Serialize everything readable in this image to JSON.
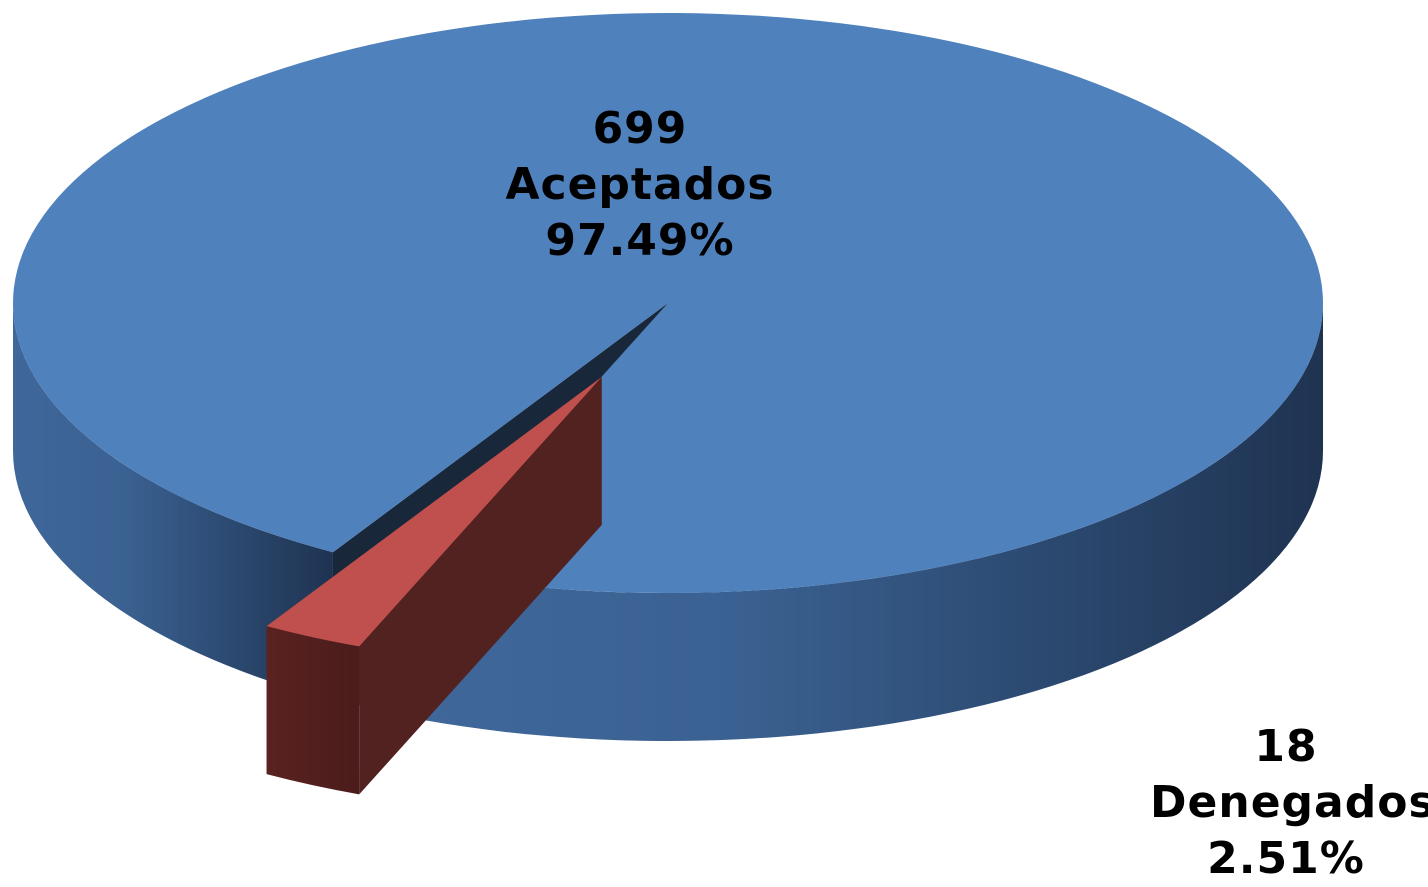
{
  "chart_data": {
    "type": "pie",
    "style": "3d",
    "slices": [
      {
        "label": "Aceptados",
        "value": 699,
        "percent": "97.49%",
        "count": "699",
        "color": "#4F81BD",
        "exploded": false
      },
      {
        "label": "Denegados",
        "value": 18,
        "percent": "2.51%",
        "count": "18",
        "color": "#C0504D",
        "exploded": true
      }
    ],
    "legend": "none"
  }
}
